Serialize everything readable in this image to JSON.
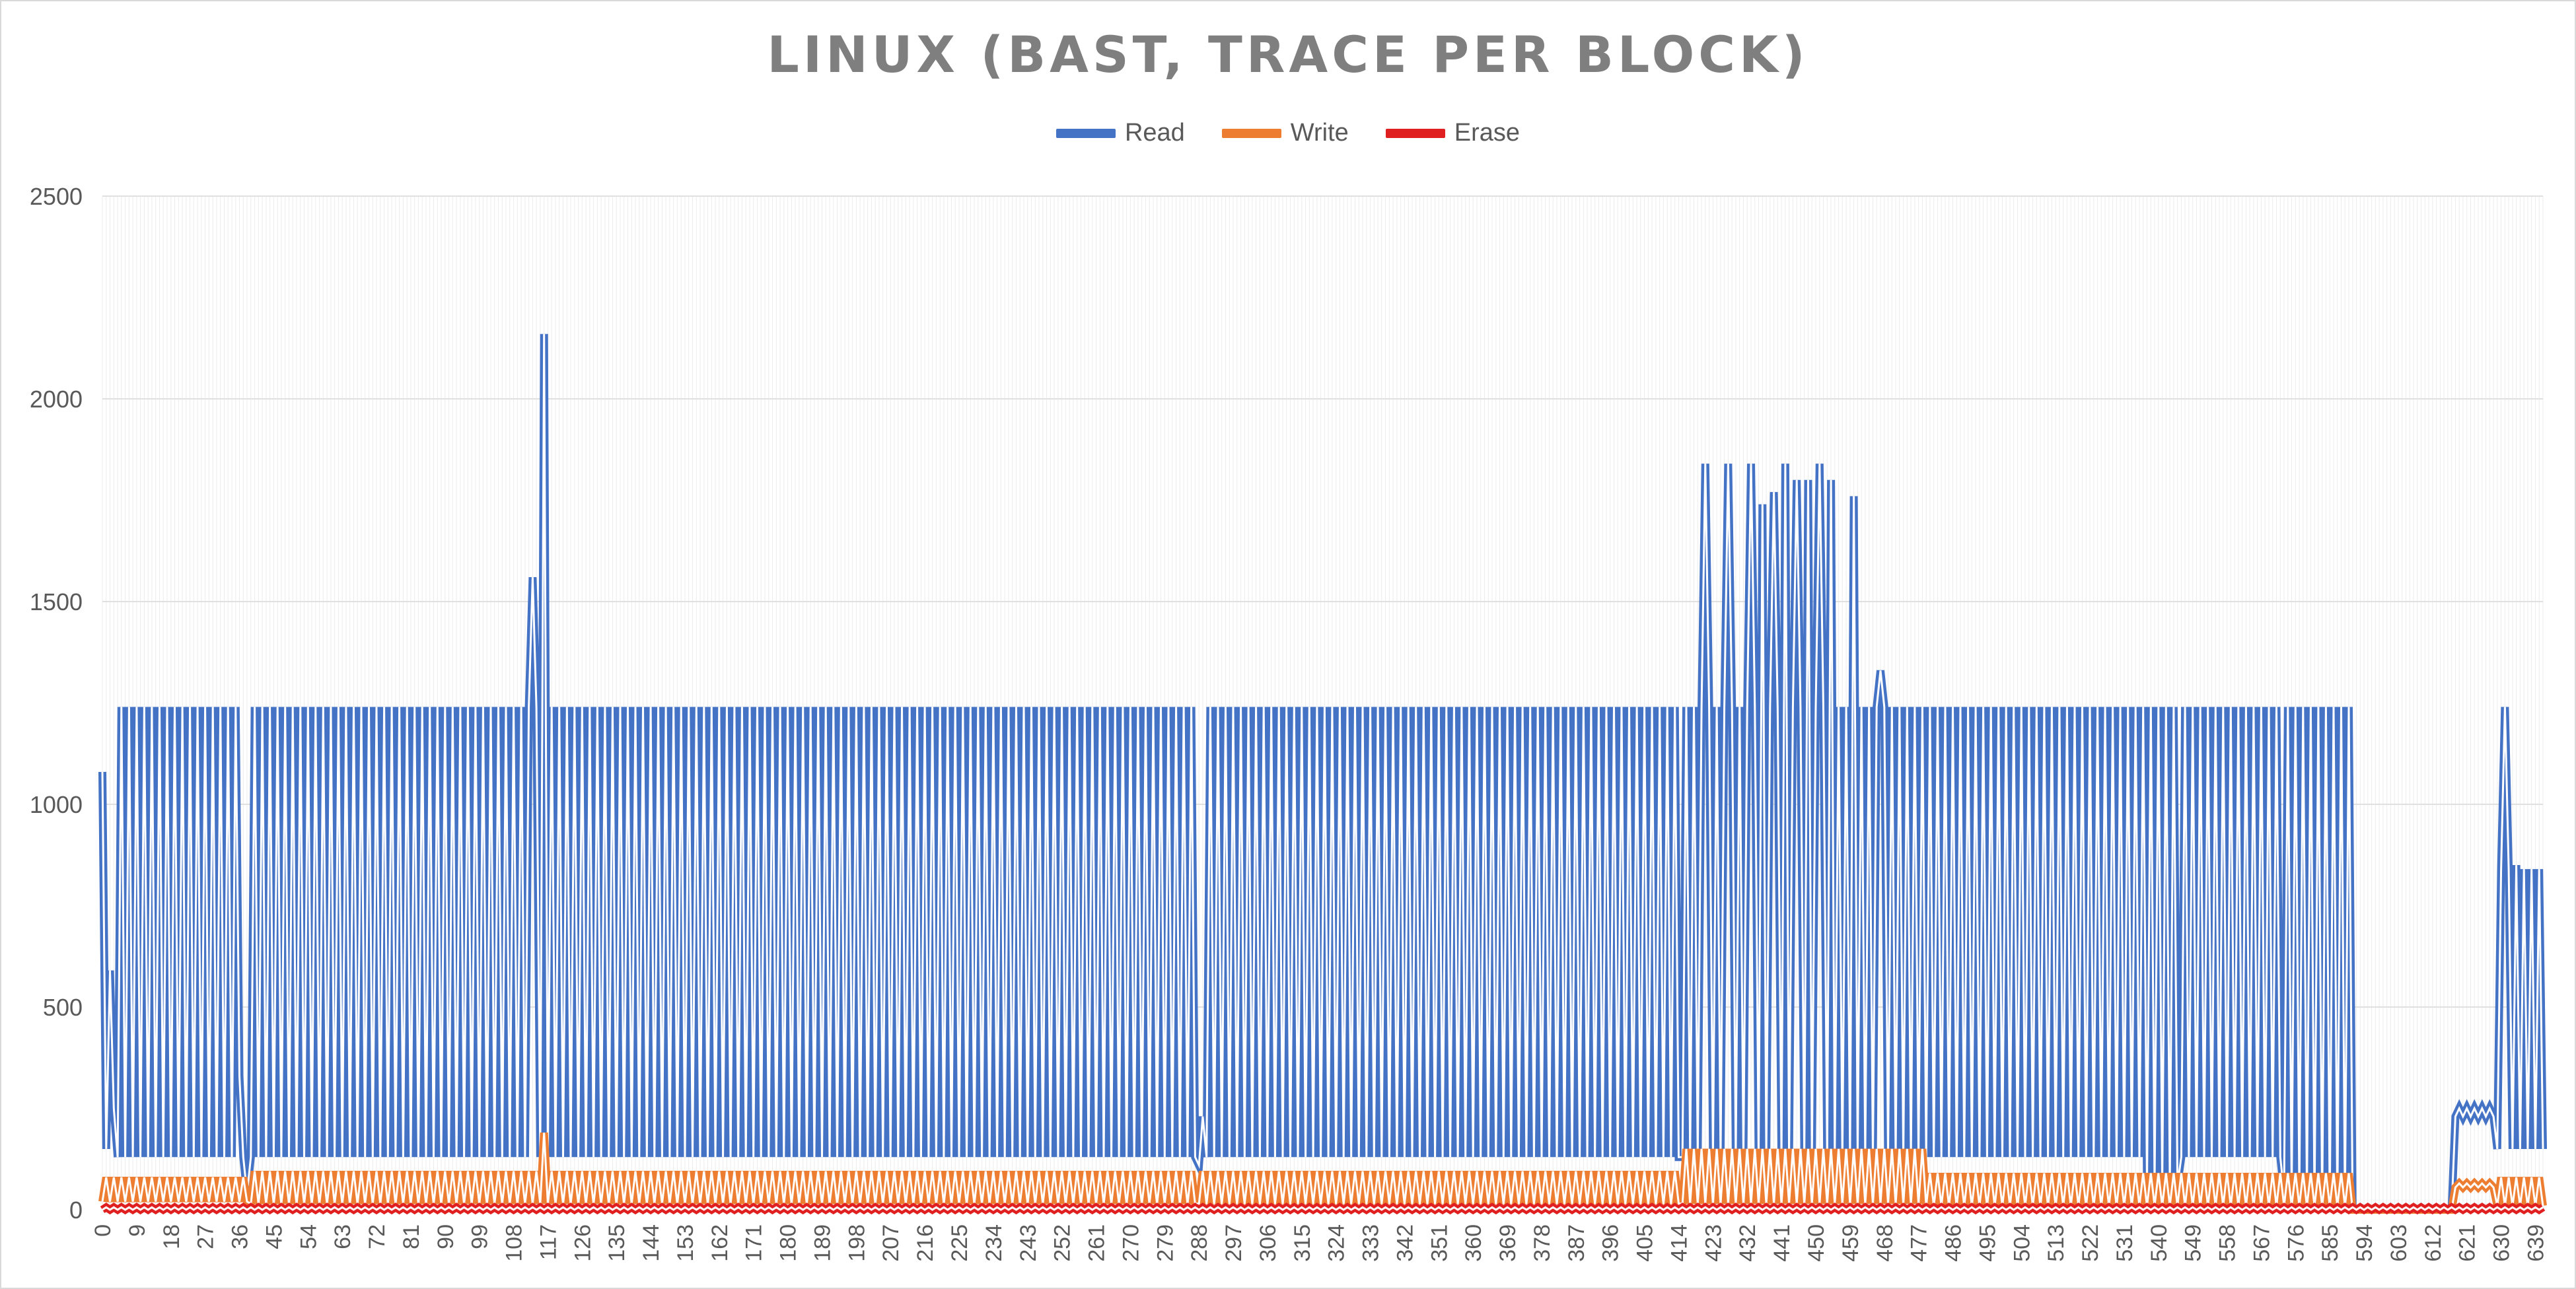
{
  "chart_data": {
    "type": "line",
    "title": "LINUX (BAST, TRACE PER BLOCK)",
    "xlabel": "",
    "ylabel": "",
    "ylim": [
      0,
      2500
    ],
    "yticks": [
      0,
      500,
      1000,
      1500,
      2000,
      2500
    ],
    "xlim": [
      0,
      641
    ],
    "xtick_step": 9,
    "grid": true,
    "legend_position": "top",
    "series": [
      {
        "name": "Read",
        "color": "#4472c4",
        "pattern": "alternating between a low value and a high value on every block",
        "segments": [
          {
            "from": 0,
            "to": 1,
            "values": [
              1080,
              150
            ]
          },
          {
            "from": 2,
            "to": 3,
            "values": [
              590,
              250
            ]
          },
          {
            "from": 4,
            "to": 35,
            "low": 130,
            "high": 1240
          },
          {
            "from": 36,
            "to": 38,
            "values": [
              330,
              130,
              40
            ]
          },
          {
            "from": 39,
            "to": 287,
            "low": 130,
            "high": 1240
          },
          {
            "from": 288,
            "to": 289,
            "values": [
              110,
              230
            ]
          },
          {
            "from": 290,
            "to": 414,
            "low": 130,
            "high": 1240
          },
          {
            "from": 415,
            "to": 478,
            "low": 130,
            "high": 1240
          },
          {
            "from": 479,
            "to": 536,
            "low": 130,
            "high": 1240
          },
          {
            "from": 537,
            "to": 545,
            "low": 60,
            "high": 1240
          },
          {
            "from": 546,
            "to": 572,
            "low": 130,
            "high": 1240
          },
          {
            "from": 573,
            "to": 580,
            "low": 40,
            "high": 1240
          },
          {
            "from": 581,
            "to": 590,
            "low": 10,
            "high": 1240
          },
          {
            "from": 591,
            "to": 617,
            "low": 0,
            "high": 0
          },
          {
            "from": 618,
            "to": 628,
            "low": 230,
            "high": 250
          },
          {
            "from": 629,
            "to": 641,
            "low": 150,
            "high": 840
          }
        ],
        "spikes": [
          {
            "x": 113,
            "y": 1560
          },
          {
            "x": 116,
            "y": 2160
          },
          {
            "x": 421,
            "y": 1840
          },
          {
            "x": 427,
            "y": 1840
          },
          {
            "x": 433,
            "y": 1840
          },
          {
            "x": 436,
            "y": 1740
          },
          {
            "x": 439,
            "y": 1770
          },
          {
            "x": 442,
            "y": 1840
          },
          {
            "x": 445,
            "y": 1800
          },
          {
            "x": 448,
            "y": 1800
          },
          {
            "x": 451,
            "y": 1840
          },
          {
            "x": 454,
            "y": 1800
          },
          {
            "x": 460,
            "y": 1760
          },
          {
            "x": 467,
            "y": 1330
          },
          {
            "x": 631,
            "y": 1240
          },
          {
            "x": 634,
            "y": 850
          }
        ]
      },
      {
        "name": "Write",
        "color": "#ed7d31",
        "pattern": "alternating between a low value and a high value on every block",
        "segments": [
          {
            "from": 0,
            "to": 38,
            "low": 20,
            "high": 80
          },
          {
            "from": 39,
            "to": 287,
            "low": 15,
            "high": 95
          },
          {
            "from": 288,
            "to": 414,
            "low": 15,
            "high": 95
          },
          {
            "from": 415,
            "to": 478,
            "low": 15,
            "high": 150
          },
          {
            "from": 479,
            "to": 590,
            "low": 10,
            "high": 90
          },
          {
            "from": 591,
            "to": 617,
            "low": 0,
            "high": 0
          },
          {
            "from": 618,
            "to": 628,
            "low": 55,
            "high": 65
          },
          {
            "from": 629,
            "to": 641,
            "low": 10,
            "high": 80
          }
        ],
        "spikes": [
          {
            "x": 116,
            "y": 190
          }
        ]
      },
      {
        "name": "Erase",
        "color": "#e02020",
        "pattern": "nearly flat near zero",
        "segments": [
          {
            "from": 0,
            "to": 641,
            "low": 0,
            "high": 6
          }
        ],
        "spikes": []
      }
    ]
  }
}
